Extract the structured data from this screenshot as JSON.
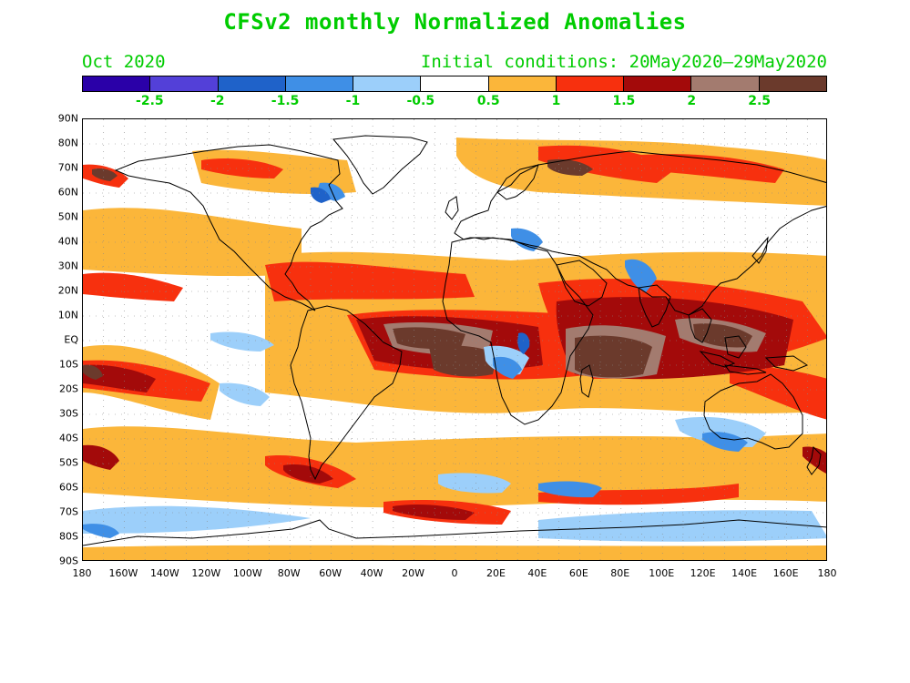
{
  "title": "CFSv2 monthly Normalized Anomalies",
  "valid_month": "Oct 2020",
  "initial_conditions": "Initial conditions: 20May2020–29May2020",
  "colorbar": {
    "colors": [
      "#2a00a8",
      "#5340d8",
      "#1f62c9",
      "#3f8fe6",
      "#9ccffa",
      "#ffffff",
      "#fbb63a",
      "#f7300e",
      "#a30a0a",
      "#a37b6f",
      "#6b3a2c"
    ],
    "labels": [
      "-2.5",
      "-2",
      "-1.5",
      "-1",
      "-0.5",
      "0.5",
      "1",
      "1.5",
      "2",
      "2.5"
    ]
  },
  "map": {
    "lat_labels": [
      "90N",
      "80N",
      "70N",
      "60N",
      "50N",
      "40N",
      "30N",
      "20N",
      "10N",
      "EQ",
      "10S",
      "20S",
      "30S",
      "40S",
      "50S",
      "60S",
      "70S",
      "80S",
      "90S"
    ],
    "lon_labels": [
      "180",
      "160W",
      "140W",
      "120W",
      "100W",
      "80W",
      "60W",
      "40W",
      "20W",
      "0",
      "20E",
      "40E",
      "60E",
      "80E",
      "100E",
      "120E",
      "140E",
      "160E",
      "180"
    ],
    "grid": "dotted",
    "color_keys": {
      "neg_light": "#9ccffa",
      "neg_med": "#3f8fe6",
      "neg_dark": "#1f62c9",
      "pos_light": "#fbb63a",
      "pos_med": "#f7300e",
      "pos_dark": "#a30a0a",
      "pos_vdark": "#6b3a2c",
      "pos_brown": "#a37b6f"
    }
  }
}
